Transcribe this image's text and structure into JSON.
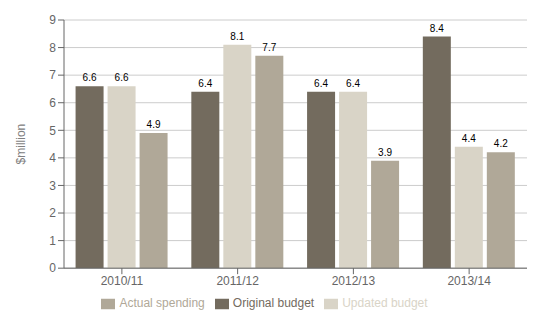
{
  "chart_data": {
    "type": "bar",
    "categories": [
      "2010/11",
      "2011/12",
      "2012/13",
      "2013/14"
    ],
    "series": [
      {
        "name": "Original budget",
        "color": "#736b5e",
        "values": [
          6.6,
          6.4,
          6.4,
          8.4
        ]
      },
      {
        "name": "Updated budget",
        "color": "#d9d4c7",
        "values": [
          6.6,
          8.1,
          6.4,
          4.4
        ]
      },
      {
        "name": "Actual spending",
        "color": "#b0a898",
        "values": [
          4.9,
          7.7,
          3.9,
          4.2
        ]
      }
    ],
    "ylabel": "$million",
    "ylim": [
      0,
      9
    ],
    "yticks": [
      0,
      1,
      2,
      3,
      4,
      5,
      6,
      7,
      8,
      9
    ],
    "grid": true,
    "data_labels": true,
    "legend": "bottom"
  }
}
